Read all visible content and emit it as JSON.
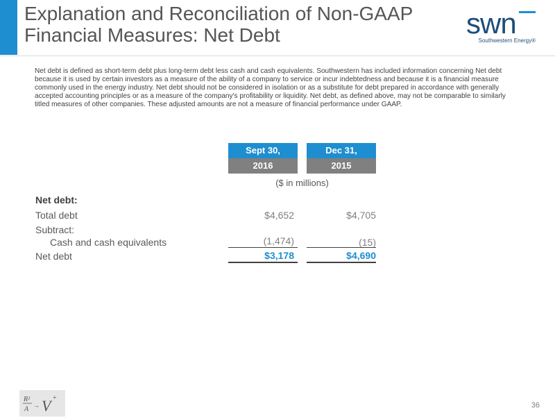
{
  "header": {
    "title_line1": "Explanation and Reconciliation of Non-GAAP",
    "title_line2": "Financial Measures: Net Debt",
    "logo_mark": "swn",
    "logo_text": "Southwestern Energy®",
    "accent_color": "#1f8ed0"
  },
  "description": "Net debt is defined as short-term debt plus long-term debt less cash and cash equivalents. Southwestern has included information concerning Net debt because it is used by certain investors as a measure of the ability of a company to service or incur indebtedness and because it is a financial measure commonly used in the energy industry. Net debt should not be considered in isolation or as a substitute for debt prepared in accordance with generally accepted accounting principles or as a measure of the company's profitability or liquidity. Net debt, as defined above, may not be comparable to similarly titled measures of other companies.  These adjusted amounts are not a measure of financial performance under GAAP.",
  "table": {
    "columns": [
      {
        "top": "Sept 30,",
        "bottom": "2016"
      },
      {
        "top": "Dec 31,",
        "bottom": "2015"
      }
    ],
    "units": "($ in millions)",
    "section_label": "Net debt:",
    "rows": [
      {
        "label": "Total debt",
        "values": [
          "$4,652",
          "$4,705"
        ]
      },
      {
        "label": "Subtract:",
        "values": [
          "",
          ""
        ]
      },
      {
        "label": "Cash and cash equivalents",
        "values": [
          "(1,474)",
          "(15)"
        ]
      },
      {
        "label": "Net debt",
        "values": [
          "$3,178",
          "$4,690"
        ]
      }
    ]
  },
  "footer": {
    "logo_text": "R²/A→V+",
    "page_number": "36"
  }
}
